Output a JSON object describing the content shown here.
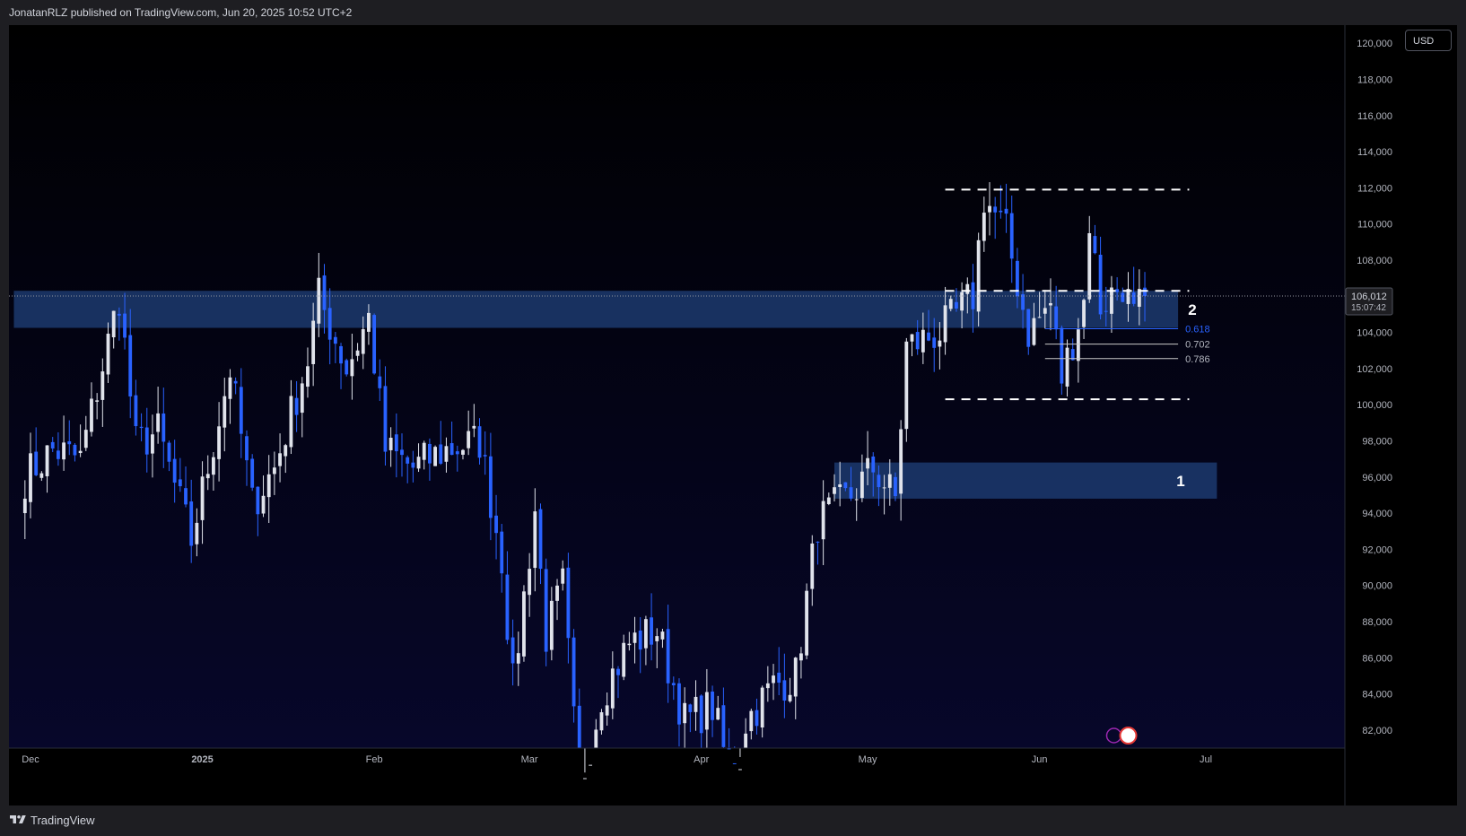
{
  "header": {
    "attribution": "JonatanRLZ published on TradingView.com, Jun 20, 2025 10:52 UTC+2"
  },
  "footer": {
    "brand": "TradingView"
  },
  "currency": "USD",
  "colors": {
    "background": "#000000",
    "up_candle": "#e0e3eb",
    "down_candle": "#2962ff",
    "zone_fill": "#1c3a6e",
    "fib_blue": "#2962ff",
    "dashed": "#ffffff"
  },
  "chart_data": {
    "type": "candlestick",
    "symbol_interval": "daily",
    "ylim": [
      81000,
      121000
    ],
    "y_ticks": [
      82000,
      84000,
      86000,
      88000,
      90000,
      92000,
      94000,
      96000,
      98000,
      100000,
      102000,
      104000,
      106000,
      108000,
      110000,
      112000,
      114000,
      116000,
      118000,
      120000
    ],
    "y_tick_labels": [
      "82,000",
      "84,000",
      "86,000",
      "88,000",
      "90,000",
      "92,000",
      "94,000",
      "96,000",
      "98,000",
      "100,000",
      "102,000",
      "104,000",
      "106,000",
      "108,000",
      "110,000",
      "112,000",
      "114,000",
      "116,000",
      "118,000",
      "120,000"
    ],
    "x_labels": [
      {
        "label": "Dec",
        "date": "2024-12-01"
      },
      {
        "label": "2025",
        "date": "2025-01-01"
      },
      {
        "label": "Feb",
        "date": "2025-02-01"
      },
      {
        "label": "Mar",
        "date": "2025-03-01"
      },
      {
        "label": "Apr",
        "date": "2025-04-01"
      },
      {
        "label": "May",
        "date": "2025-05-01"
      },
      {
        "label": "Jun",
        "date": "2025-06-01"
      },
      {
        "label": "Jul",
        "date": "2025-07-01"
      }
    ],
    "closes": [
      {
        "date": "2024-11-30",
        "close": 96000
      },
      {
        "date": "2024-12-05",
        "close": 97500
      },
      {
        "date": "2024-12-10",
        "close": 97000
      },
      {
        "date": "2024-12-17",
        "close": 106000
      },
      {
        "date": "2024-12-20",
        "close": 97800
      },
      {
        "date": "2024-12-24",
        "close": 98500
      },
      {
        "date": "2024-12-30",
        "close": 92500
      },
      {
        "date": "2025-01-06",
        "close": 102000
      },
      {
        "date": "2025-01-10",
        "close": 94500
      },
      {
        "date": "2025-01-14",
        "close": 96500
      },
      {
        "date": "2025-01-20",
        "close": 102500
      },
      {
        "date": "2025-01-22",
        "close": 106000
      },
      {
        "date": "2025-01-27",
        "close": 102000
      },
      {
        "date": "2025-01-31",
        "close": 104800
      },
      {
        "date": "2025-02-03",
        "close": 97500
      },
      {
        "date": "2025-02-08",
        "close": 96500
      },
      {
        "date": "2025-02-14",
        "close": 97500
      },
      {
        "date": "2025-02-20",
        "close": 98000
      },
      {
        "date": "2025-02-24",
        "close": 91500
      },
      {
        "date": "2025-02-26",
        "close": 84500
      },
      {
        "date": "2025-03-02",
        "close": 94200
      },
      {
        "date": "2025-03-04",
        "close": 87200
      },
      {
        "date": "2025-03-07",
        "close": 90000
      },
      {
        "date": "2025-03-10",
        "close": 78500
      },
      {
        "date": "2025-03-14",
        "close": 84000
      },
      {
        "date": "2025-03-19",
        "close": 86800
      },
      {
        "date": "2025-03-24",
        "close": 87500
      },
      {
        "date": "2025-03-29",
        "close": 82500
      },
      {
        "date": "2025-04-03",
        "close": 83300
      },
      {
        "date": "2025-04-07",
        "close": 78500
      },
      {
        "date": "2025-04-09",
        "close": 82500
      },
      {
        "date": "2025-04-14",
        "close": 84500
      },
      {
        "date": "2025-04-18",
        "close": 85000
      },
      {
        "date": "2025-04-22",
        "close": 93500
      },
      {
        "date": "2025-04-28",
        "close": 95000
      },
      {
        "date": "2025-05-02",
        "close": 96500
      },
      {
        "date": "2025-05-06",
        "close": 94800
      },
      {
        "date": "2025-05-08",
        "close": 103200
      },
      {
        "date": "2025-05-14",
        "close": 104000
      },
      {
        "date": "2025-05-20",
        "close": 106000
      },
      {
        "date": "2025-05-22",
        "close": 111500
      },
      {
        "date": "2025-05-26",
        "close": 109500
      },
      {
        "date": "2025-05-30",
        "close": 104000
      },
      {
        "date": "2025-06-03",
        "close": 105600
      },
      {
        "date": "2025-06-05",
        "close": 101500
      },
      {
        "date": "2025-06-09",
        "close": 105700
      },
      {
        "date": "2025-06-10",
        "close": 110200
      },
      {
        "date": "2025-06-12",
        "close": 105500
      },
      {
        "date": "2025-06-16",
        "close": 106700
      },
      {
        "date": "2025-06-18",
        "close": 104800
      },
      {
        "date": "2025-06-20",
        "close": 106012
      }
    ],
    "zones": [
      {
        "label": "1",
        "from_date": "2025-04-25",
        "to_date": "2025-07-03",
        "low": 94800,
        "high": 96800
      },
      {
        "label": "2",
        "from_date": "2024-11-28",
        "to_date": "2025-06-26",
        "low": 104250,
        "high": 106300
      }
    ],
    "range_lines": [
      {
        "name": "range-high",
        "value": 111900,
        "from_date": "2025-05-15",
        "to_date": "2025-06-28"
      },
      {
        "name": "range-mid",
        "value": 106300,
        "from_date": "2025-05-15",
        "to_date": "2025-06-28"
      },
      {
        "name": "range-low",
        "value": 100300,
        "from_date": "2025-05-15",
        "to_date": "2025-06-28"
      }
    ],
    "fib_levels": [
      {
        "label": "0.618",
        "value": 104200
      },
      {
        "label": "0.702",
        "value": 103350
      },
      {
        "label": "0.786",
        "value": 102550
      }
    ],
    "last_price": {
      "value": 106012,
      "label": "106,012",
      "countdown": "15:07:42"
    }
  }
}
